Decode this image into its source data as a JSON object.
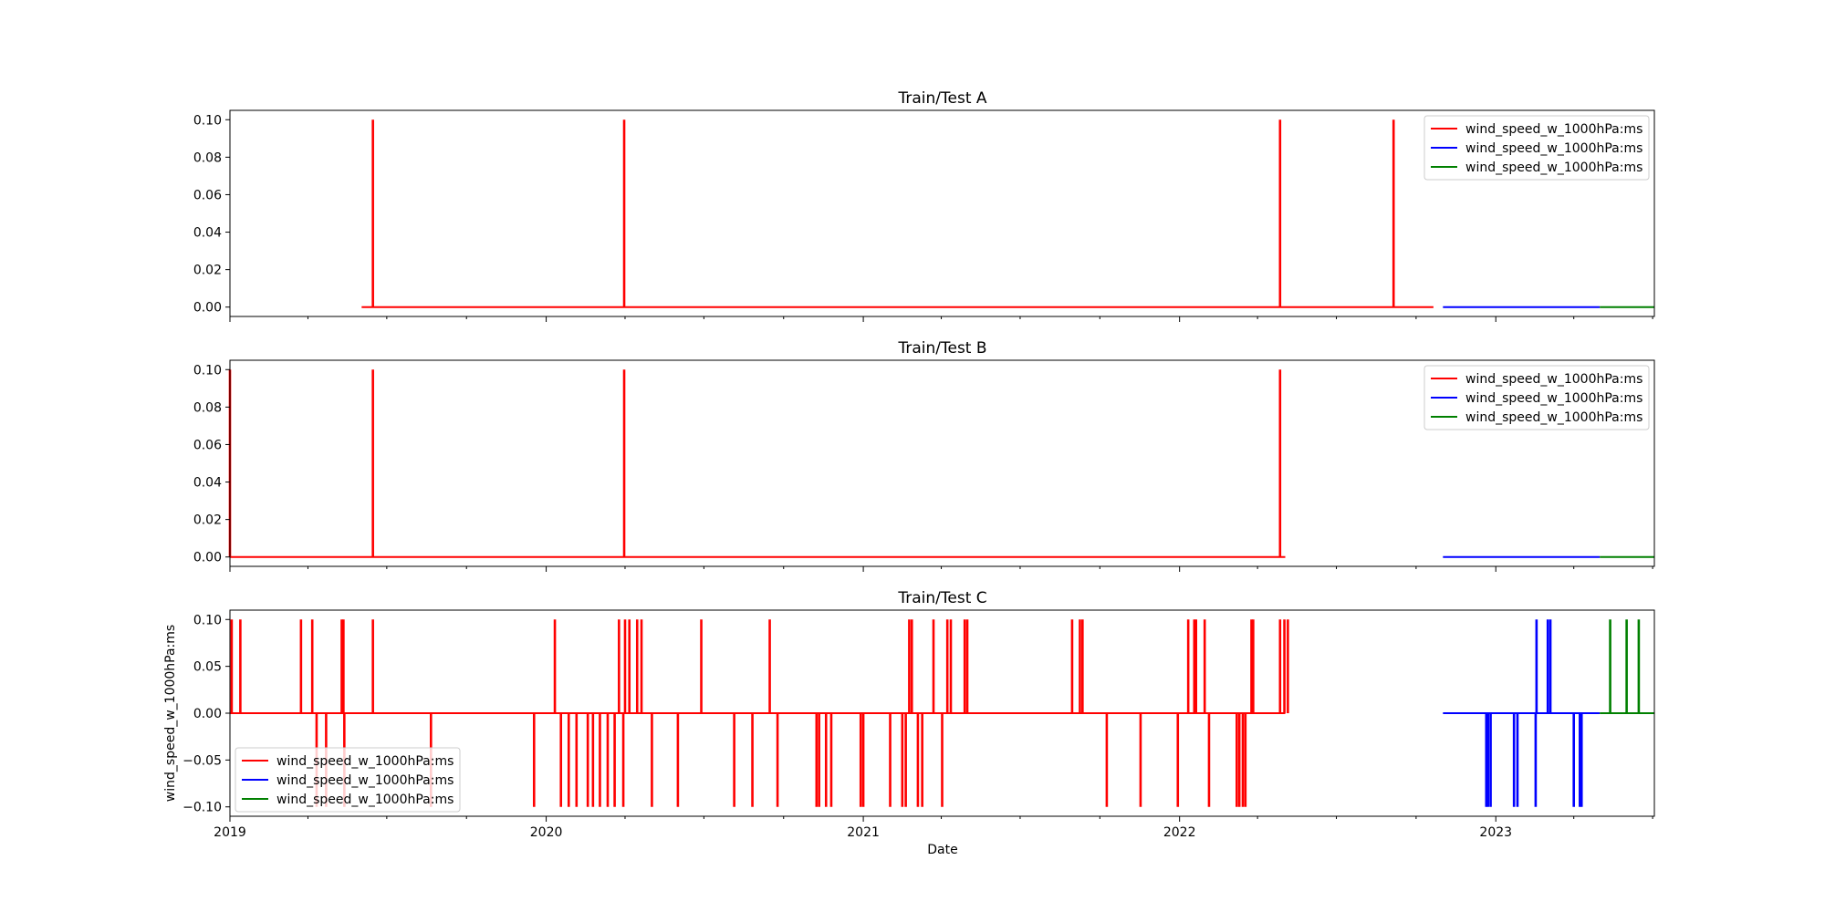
{
  "figure": {
    "xlabel": "Date",
    "ylabel": "wind_speed_w_1000hPa:ms",
    "x_range": [
      "2019-01-01",
      "2023-07-03"
    ],
    "x_ticks": [
      "2019",
      "2020",
      "2021",
      "2022",
      "2023"
    ],
    "colors": {
      "red": "#ff0000",
      "blue": "#0000ff",
      "green": "#008000"
    }
  },
  "chart_data": [
    {
      "type": "line",
      "title": "Train/Test  A",
      "ylim": [
        -0.005,
        0.105
      ],
      "y_ticks": [
        "0.00",
        "0.02",
        "0.04",
        "0.06",
        "0.08",
        "0.10"
      ],
      "legend_position": "upper right",
      "series": [
        {
          "name": "wind_speed_w_1000hPa:ms",
          "color": "#ff0000",
          "range": [
            "2019-06-02",
            "2022-10-21"
          ],
          "baseline": 0.0,
          "spikes": [
            [
              "2019-06-15",
              0.1
            ],
            [
              "2020-03-31",
              0.1
            ],
            [
              "2022-04-27",
              0.1
            ],
            [
              "2022-09-05",
              0.1
            ]
          ]
        },
        {
          "name": "wind_speed_w_1000hPa:ms",
          "color": "#0000ff",
          "range": [
            "2022-11-01",
            "2023-05-01"
          ],
          "baseline": 0.0,
          "spikes": []
        },
        {
          "name": "wind_speed_w_1000hPa:ms",
          "color": "#008000",
          "range": [
            "2023-05-01",
            "2023-07-03"
          ],
          "baseline": 0.0,
          "spikes": []
        }
      ]
    },
    {
      "type": "line",
      "title": "Train/Test  B",
      "ylim": [
        -0.005,
        0.105
      ],
      "y_ticks": [
        "0.00",
        "0.02",
        "0.04",
        "0.06",
        "0.08",
        "0.10"
      ],
      "legend_position": "upper right",
      "series": [
        {
          "name": "wind_speed_w_1000hPa:ms",
          "color": "#ff0000",
          "range": [
            "2019-01-01",
            "2022-05-03"
          ],
          "baseline": 0.0,
          "spikes": [
            [
              "2019-01-01",
              0.1
            ],
            [
              "2019-06-15",
              0.1
            ],
            [
              "2020-03-31",
              0.1
            ],
            [
              "2022-04-27",
              0.1
            ]
          ]
        },
        {
          "name": "wind_speed_w_1000hPa:ms",
          "color": "#0000ff",
          "range": [
            "2022-11-01",
            "2023-05-01"
          ],
          "baseline": 0.0,
          "spikes": []
        },
        {
          "name": "wind_speed_w_1000hPa:ms",
          "color": "#008000",
          "range": [
            "2023-05-01",
            "2023-07-03"
          ],
          "baseline": 0.0,
          "spikes": []
        }
      ]
    },
    {
      "type": "line",
      "title": "Train/Test  C",
      "ylim": [
        -0.11,
        0.11
      ],
      "y_ticks": [
        "−0.10",
        "−0.05",
        "0.00",
        "0.05",
        "0.10"
      ],
      "y_tick_values": [
        -0.1,
        -0.05,
        0.0,
        0.05,
        0.1
      ],
      "legend_position": "lower left",
      "series": [
        {
          "name": "wind_speed_w_1000hPa:ms",
          "color": "#ff0000",
          "range": [
            "2019-01-01",
            "2022-05-03"
          ],
          "baseline": 0.0,
          "spikes": [
            [
              "2019-01-03",
              0.1
            ],
            [
              "2019-01-13",
              0.1
            ],
            [
              "2019-03-24",
              0.1
            ],
            [
              "2019-04-06",
              0.1
            ],
            [
              "2019-04-11",
              -0.1
            ],
            [
              "2019-04-22",
              -0.1
            ],
            [
              "2019-05-10",
              0.1
            ],
            [
              "2019-05-12",
              0.1
            ],
            [
              "2019-05-13",
              -0.1
            ],
            [
              "2019-06-15",
              0.1
            ],
            [
              "2019-08-21",
              -0.1
            ],
            [
              "2019-12-18",
              -0.1
            ],
            [
              "2020-01-11",
              0.1
            ],
            [
              "2020-01-18",
              -0.1
            ],
            [
              "2020-01-27",
              -0.1
            ],
            [
              "2020-02-05",
              -0.1
            ],
            [
              "2020-02-18",
              -0.1
            ],
            [
              "2020-02-24",
              -0.1
            ],
            [
              "2020-03-03",
              -0.1
            ],
            [
              "2020-03-12",
              -0.1
            ],
            [
              "2020-03-20",
              -0.1
            ],
            [
              "2020-03-25",
              0.1
            ],
            [
              "2020-03-30",
              -0.1
            ],
            [
              "2020-04-01",
              0.1
            ],
            [
              "2020-04-06",
              0.1
            ],
            [
              "2020-04-15",
              0.1
            ],
            [
              "2020-04-20",
              0.1
            ],
            [
              "2020-05-02",
              -0.1
            ],
            [
              "2020-06-01",
              -0.1
            ],
            [
              "2020-06-28",
              0.1
            ],
            [
              "2020-08-05",
              -0.1
            ],
            [
              "2020-08-26",
              -0.1
            ],
            [
              "2020-09-15",
              0.1
            ],
            [
              "2020-09-24",
              -0.1
            ],
            [
              "2020-11-08",
              -0.1
            ],
            [
              "2020-11-11",
              -0.1
            ],
            [
              "2020-11-19",
              -0.1
            ],
            [
              "2020-11-25",
              -0.1
            ],
            [
              "2020-12-29",
              -0.1
            ],
            [
              "2021-01-01",
              -0.1
            ],
            [
              "2021-02-01",
              -0.1
            ],
            [
              "2021-02-15",
              -0.1
            ],
            [
              "2021-02-19",
              -0.1
            ],
            [
              "2021-02-23",
              0.1
            ],
            [
              "2021-02-26",
              0.1
            ],
            [
              "2021-03-05",
              -0.1
            ],
            [
              "2021-03-10",
              -0.1
            ],
            [
              "2021-03-23",
              0.1
            ],
            [
              "2021-04-02",
              -0.1
            ],
            [
              "2021-04-08",
              0.1
            ],
            [
              "2021-04-12",
              0.1
            ],
            [
              "2021-04-28",
              0.1
            ],
            [
              "2021-05-01",
              0.1
            ],
            [
              "2021-08-30",
              0.1
            ],
            [
              "2021-09-08",
              0.1
            ],
            [
              "2021-09-11",
              0.1
            ],
            [
              "2021-10-09",
              -0.1
            ],
            [
              "2021-11-17",
              -0.1
            ],
            [
              "2021-12-30",
              -0.1
            ],
            [
              "2022-01-11",
              0.1
            ],
            [
              "2022-01-18",
              0.1
            ],
            [
              "2022-01-20",
              0.1
            ],
            [
              "2022-01-30",
              0.1
            ],
            [
              "2022-02-04",
              -0.1
            ],
            [
              "2022-03-08",
              -0.1
            ],
            [
              "2022-03-11",
              -0.1
            ],
            [
              "2022-03-15",
              -0.1
            ],
            [
              "2022-03-18",
              -0.1
            ],
            [
              "2022-03-25",
              0.1
            ],
            [
              "2022-03-27",
              0.1
            ],
            [
              "2022-04-27",
              0.1
            ],
            [
              "2022-05-02",
              0.1
            ],
            [
              "2022-05-06",
              0.1
            ]
          ]
        },
        {
          "name": "wind_speed_w_1000hPa:ms",
          "color": "#0000ff",
          "range": [
            "2022-11-01",
            "2023-05-01"
          ],
          "baseline": 0.0,
          "spikes": [
            [
              "2022-12-21",
              -0.1
            ],
            [
              "2022-12-23",
              -0.1
            ],
            [
              "2022-12-26",
              -0.1
            ],
            [
              "2023-01-22",
              -0.1
            ],
            [
              "2023-01-26",
              -0.1
            ],
            [
              "2023-02-16",
              -0.1
            ],
            [
              "2023-02-17",
              0.1
            ],
            [
              "2023-03-02",
              0.1
            ],
            [
              "2023-03-05",
              0.1
            ],
            [
              "2023-04-01",
              -0.1
            ],
            [
              "2023-04-08",
              -0.1
            ],
            [
              "2023-04-10",
              -0.1
            ]
          ]
        },
        {
          "name": "wind_speed_w_1000hPa:ms",
          "color": "#008000",
          "range": [
            "2023-05-01",
            "2023-07-03"
          ],
          "baseline": 0.0,
          "spikes": [
            [
              "2023-05-13",
              0.1
            ],
            [
              "2023-06-01",
              0.1
            ],
            [
              "2023-06-15",
              0.1
            ]
          ]
        }
      ]
    }
  ]
}
